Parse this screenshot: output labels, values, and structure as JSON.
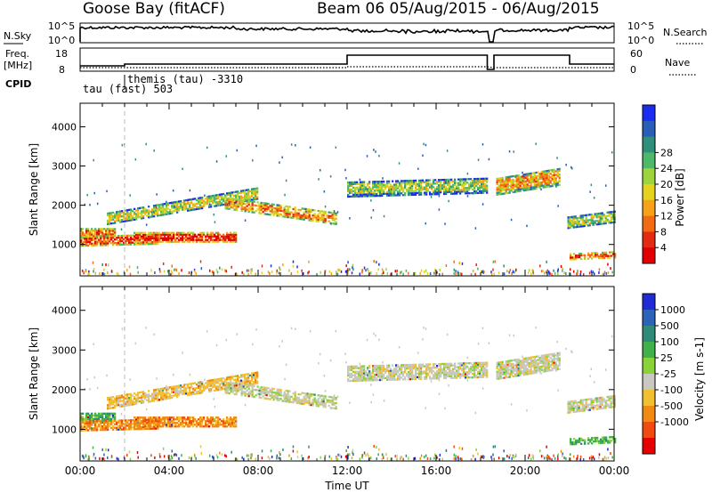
{
  "header": {
    "station": "Goose Bay (fitACF)",
    "beam_date": "Beam 06 05/Aug/2015 - 06/Aug/2015"
  },
  "noise_panel": {
    "left_label": "N.Sky",
    "right_label": "N.Search",
    "left_ticks": [
      "10^5",
      "10^0"
    ],
    "right_ticks": [
      "10^5",
      "10^0"
    ]
  },
  "freq_panel": {
    "left_label_line1": "Freq.",
    "left_label_line2": "[MHz]",
    "right_label": "Nave",
    "left_ticks": [
      "18",
      "8"
    ],
    "right_ticks": [
      "60",
      "0"
    ]
  },
  "cpid": {
    "label": "CPID",
    "annotations": [
      {
        "text": "tau (fast) 503"
      },
      {
        "text": "themis (tau) -3310"
      }
    ]
  },
  "chart_data": [
    {
      "type": "heatmap",
      "name": "Power",
      "ylabel": "Slant Range [km]",
      "yticks": [
        "1000",
        "2000",
        "3000",
        "4000"
      ],
      "ylim": [
        200,
        4600
      ],
      "xlim": [
        0,
        24
      ],
      "colorbar": {
        "label": "Power [dB]",
        "ticks": [
          "4",
          "8",
          "12",
          "16",
          "20",
          "24",
          "28"
        ],
        "colors": [
          "#1b2cf0",
          "#2a5fb8",
          "#2f8f7a",
          "#4db86a",
          "#9dd33c",
          "#e6d11c",
          "#f5a21a",
          "#f26b12",
          "#e32a12",
          "#e00000"
        ]
      }
    },
    {
      "type": "heatmap",
      "name": "Velocity",
      "ylabel": "Slant Range [km]",
      "yticks": [
        "1000",
        "2000",
        "3000",
        "4000"
      ],
      "ylim": [
        200,
        4600
      ],
      "xlim": [
        0,
        24
      ],
      "xlabel": "Time UT",
      "xticks": [
        "00:00",
        "04:00",
        "08:00",
        "12:00",
        "16:00",
        "20:00",
        "00:00"
      ],
      "colorbar": {
        "label": "Velocity [m s-1]",
        "ticks": [
          "1000",
          "500",
          "100",
          "25",
          "-25",
          "-100",
          "-500",
          "-1000"
        ],
        "colors": [
          "#1e2bd6",
          "#2a63b8",
          "#2f8a78",
          "#3fb04a",
          "#8ad23a",
          "#c8c8c0",
          "#f0c030",
          "#f08a10",
          "#f04a10",
          "#e80000"
        ]
      }
    }
  ]
}
